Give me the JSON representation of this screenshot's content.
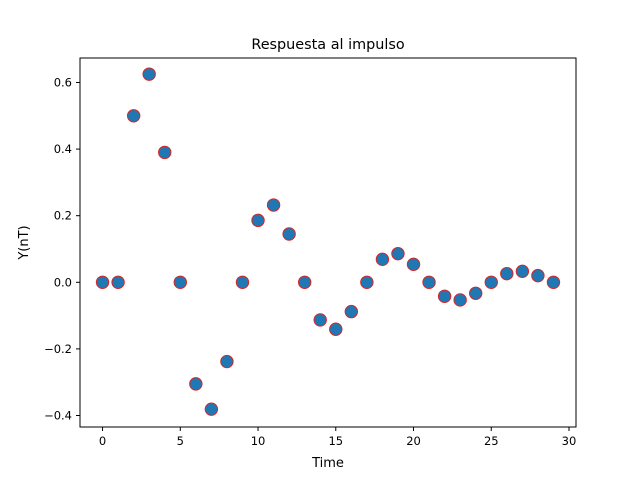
{
  "chart_data": {
    "type": "scatter",
    "title": "Respuesta al impulso",
    "xlabel": "Time",
    "ylabel": "Y(nT)",
    "xlim": [
      -1.45,
      30.45
    ],
    "ylim": [
      -0.4345,
      0.6735
    ],
    "xticks": [
      0,
      5,
      10,
      15,
      20,
      25,
      30
    ],
    "xtick_labels": [
      "0",
      "5",
      "10",
      "15",
      "20",
      "25",
      "30"
    ],
    "yticks": [
      -0.4,
      -0.2,
      0.0,
      0.2,
      0.4,
      0.6
    ],
    "ytick_labels": [
      "−0.4",
      "−0.2",
      "0.0",
      "0.2",
      "0.4",
      "0.6"
    ],
    "grid": false,
    "legend": "none",
    "marker_face_color": "#1f77b4",
    "marker_edge_color": "#d62728",
    "series": [
      {
        "x": [
          0,
          1,
          2,
          3,
          4,
          5,
          6,
          7,
          8,
          9,
          10,
          11,
          12,
          13,
          14,
          15,
          16,
          17,
          18,
          19,
          20,
          21,
          22,
          23,
          24,
          25,
          26,
          27,
          28,
          29
        ],
        "values": [
          0,
          0,
          0.5,
          0.625,
          0.39,
          0,
          -0.305,
          -0.381,
          -0.238,
          0,
          0.186,
          0.232,
          0.145,
          0,
          -0.113,
          -0.141,
          -0.088,
          0,
          0.069,
          0.086,
          0.054,
          0,
          -0.042,
          -0.053,
          -0.033,
          0,
          0.026,
          0.033,
          0.02,
          0
        ]
      }
    ]
  }
}
